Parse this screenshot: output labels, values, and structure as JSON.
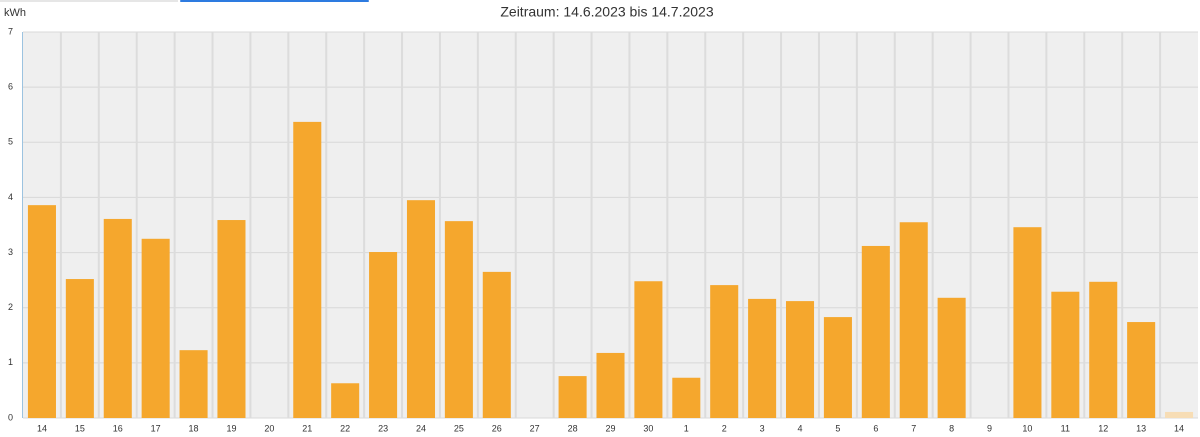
{
  "chart_data": {
    "type": "bar",
    "title": "Zeitraum: 14.6.2023 bis 14.7.2023",
    "y_label": "kWh",
    "categories": [
      "14",
      "15",
      "16",
      "17",
      "18",
      "19",
      "20",
      "21",
      "22",
      "23",
      "24",
      "25",
      "26",
      "27",
      "28",
      "29",
      "30",
      "1",
      "2",
      "3",
      "4",
      "5",
      "6",
      "7",
      "8",
      "9",
      "10",
      "11",
      "12",
      "13",
      "14"
    ],
    "values": [
      3.86,
      2.52,
      3.61,
      3.25,
      1.23,
      3.59,
      0,
      5.37,
      0.63,
      3.01,
      3.95,
      3.57,
      2.65,
      0,
      0.76,
      1.18,
      2.48,
      0.73,
      2.41,
      2.16,
      2.12,
      1.83,
      3.12,
      3.55,
      2.18,
      0,
      3.46,
      2.29,
      2.47,
      1.74,
      0.11
    ],
    "colors": [
      "#f5a72d",
      "#f5a72d",
      "#f5a72d",
      "#f5a72d",
      "#f5a72d",
      "#f5a72d",
      "#f5a72d",
      "#f5a72d",
      "#f5a72d",
      "#f5a72d",
      "#f5a72d",
      "#f5a72d",
      "#f5a72d",
      "#f5a72d",
      "#f5a72d",
      "#f5a72d",
      "#f5a72d",
      "#f5a72d",
      "#f5a72d",
      "#f5a72d",
      "#f5a72d",
      "#f5a72d",
      "#f5a72d",
      "#f5a72d",
      "#f5a72d",
      "#f5a72d",
      "#f5a72d",
      "#f5a72d",
      "#f5a72d",
      "#f5a72d",
      "#f7ddb5"
    ],
    "ylim": [
      0,
      7
    ],
    "yticks": [
      0,
      1,
      2,
      3,
      4,
      5,
      6,
      7
    ],
    "grid": true
  }
}
